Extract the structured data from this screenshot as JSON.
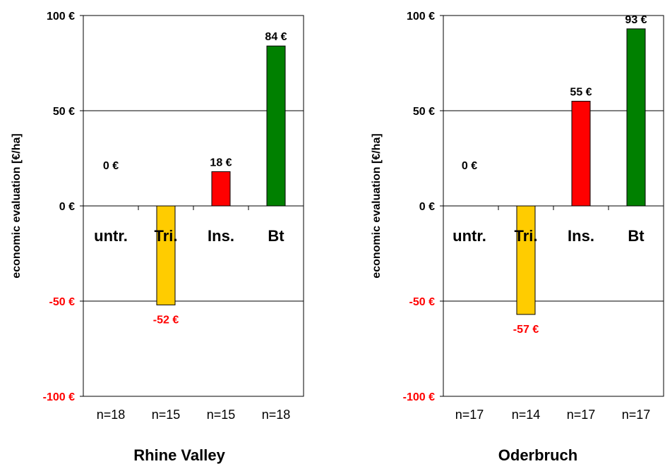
{
  "chart_data": [
    {
      "type": "bar",
      "title": "Rhine Valley",
      "ylabel": "economic evaluation [€/ha]",
      "ylim": [
        -100,
        100
      ],
      "yticks": [
        100,
        50,
        0,
        -50,
        -100
      ],
      "ytick_labels": [
        "100 €",
        "50 €",
        "0 €",
        "-50 €",
        "-100 €"
      ],
      "categories": [
        "untr.",
        "Tri.",
        "Ins.",
        "Bt"
      ],
      "values": [
        0,
        -52,
        18,
        84
      ],
      "value_labels": [
        "0 €",
        "-52 €",
        "18 €",
        "84 €"
      ],
      "sample_sizes": [
        "n=18",
        "n=15",
        "n=15",
        "n=18"
      ],
      "colors": [
        "#ffffff",
        "#ffcc00",
        "#ff0000",
        "#008000"
      ],
      "grid": true
    },
    {
      "type": "bar",
      "title": "Oderbruch",
      "ylabel": "economic evaluation [€/ha]",
      "ylim": [
        -100,
        100
      ],
      "yticks": [
        100,
        50,
        0,
        -50,
        -100
      ],
      "ytick_labels": [
        "100 €",
        "50 €",
        "0 €",
        "-50 €",
        "-100 €"
      ],
      "categories": [
        "untr.",
        "Tri.",
        "Ins.",
        "Bt"
      ],
      "values": [
        0,
        -57,
        55,
        93
      ],
      "value_labels": [
        "0 €",
        "-57 €",
        "55 €",
        "93 €"
      ],
      "sample_sizes": [
        "n=17",
        "n=14",
        "n=17",
        "n=17"
      ],
      "colors": [
        "#ffffff",
        "#ffcc00",
        "#ff0000",
        "#008000"
      ],
      "grid": true
    }
  ],
  "colors": {
    "positive_label": "#000000",
    "negative_label": "#ff0000"
  }
}
